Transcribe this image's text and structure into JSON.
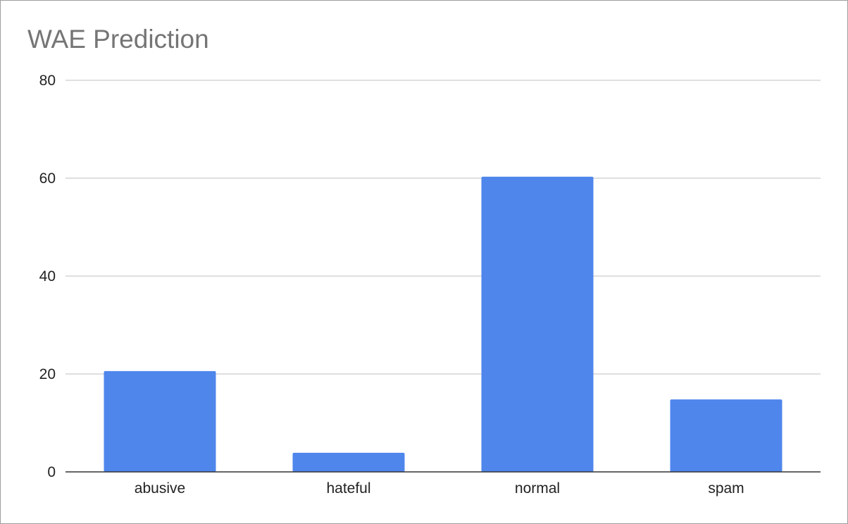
{
  "chart_data": {
    "type": "bar",
    "title": "WAE Prediction",
    "categories": [
      "abusive",
      "hateful",
      "normal",
      "spam"
    ],
    "values": [
      20.6,
      3.9,
      60.3,
      14.8
    ],
    "xlabel": "",
    "ylabel": "",
    "ylim": [
      0,
      80
    ],
    "yticks": [
      0,
      20,
      40,
      60,
      80
    ],
    "grid": true,
    "legend": "none",
    "bar_color": "#4f86ec"
  }
}
